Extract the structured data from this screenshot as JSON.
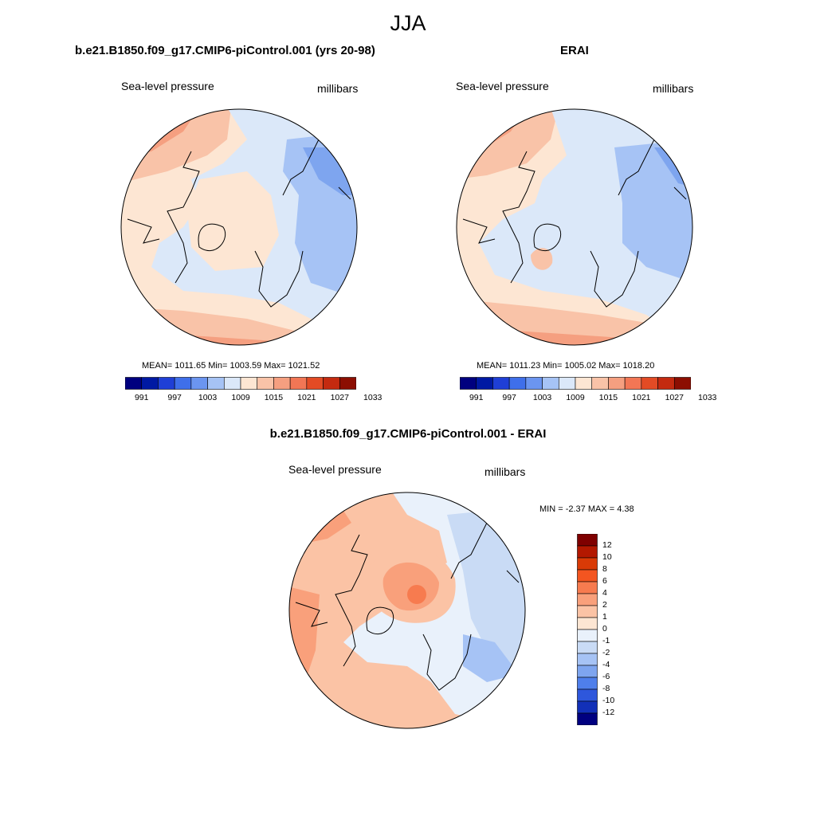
{
  "figure": {
    "season": "JJA",
    "variable": "Sea-level pressure",
    "units": "millibars"
  },
  "panels": [
    {
      "title": "b.e21.B1850.f09_g17.CMIP6-piControl.001 (yrs 20-98)",
      "variable": "Sea-level pressure",
      "units": "millibars",
      "stats": "MEAN= 1011.65  Min= 1003.59  Max= 1021.52"
    },
    {
      "title": "ERAI",
      "variable": "Sea-level pressure",
      "units": "millibars",
      "stats": "MEAN= 1011.23  Min= 1005.02  Max= 1018.20"
    },
    {
      "title": "b.e21.B1850.f09_g17.CMIP6-piControl.001 - ERAI",
      "variable": "Sea-level pressure",
      "units": "millibars",
      "stats": "MIN =  -2.37 MAX =   4.38"
    }
  ],
  "colorbar_abs": {
    "labels": [
      "991",
      "997",
      "1003",
      "1009",
      "1015",
      "1021",
      "1027",
      "1033"
    ],
    "colors": [
      "#00007f",
      "#0019a3",
      "#1f3fd6",
      "#3f6fea",
      "#6b95f0",
      "#a6c3f5",
      "#dbe8f9",
      "#fde6d3",
      "#f9c3a8",
      "#f59f80",
      "#f27655",
      "#e34b25",
      "#c42a10",
      "#8c0e02"
    ]
  },
  "colorbar_diff": {
    "labels": [
      "12",
      "10",
      "8",
      "6",
      "4",
      "2",
      "1",
      "0",
      "-1",
      "-2",
      "-4",
      "-6",
      "-8",
      "-10",
      "-12"
    ],
    "colors": [
      "#7f0000",
      "#b31800",
      "#d93a06",
      "#f35520",
      "#f77b4f",
      "#f9a07b",
      "#fbc3a5",
      "#fde6d3",
      "#e9f1fb",
      "#c9dbf5",
      "#a6c3f5",
      "#7ea5ef",
      "#4f7feb",
      "#2e57dc",
      "#1230b8",
      "#000080"
    ]
  }
}
